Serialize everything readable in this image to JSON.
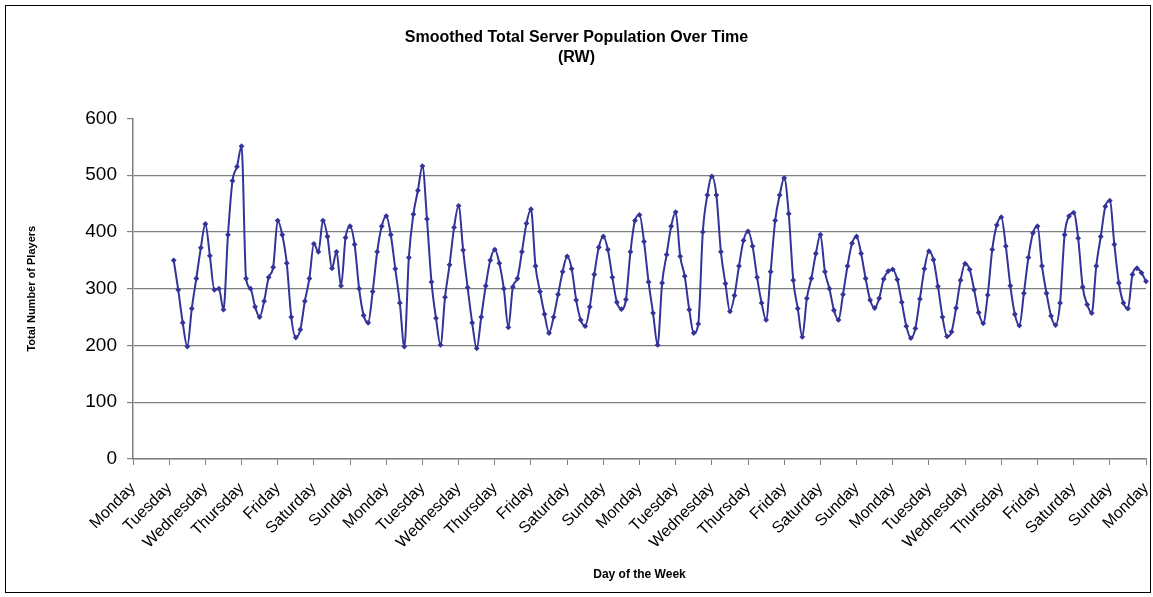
{
  "chart_data": {
    "type": "line",
    "title": "Smoothed Total Server Population Over Time",
    "subtitle": "(RW)",
    "xlabel": "Day of the Week",
    "ylabel": "Total Number of Players",
    "categories": [
      "Monday",
      null,
      null,
      null,
      null,
      null,
      null,
      null,
      "Tuesday",
      null,
      null,
      null,
      null,
      null,
      null,
      null,
      "Wednesday",
      null,
      null,
      null,
      null,
      null,
      null,
      null,
      "Thursday",
      null,
      null,
      null,
      null,
      null,
      null,
      null,
      "Friday",
      null,
      null,
      null,
      null,
      null,
      null,
      null,
      "Saturday",
      null,
      null,
      null,
      null,
      null,
      null,
      null,
      "Sunday",
      null,
      null,
      null,
      null,
      null,
      null,
      null,
      "Monday",
      null,
      null,
      null,
      null,
      null,
      null,
      null,
      "Tuesday",
      null,
      null,
      null,
      null,
      null,
      null,
      null,
      "Wednesday",
      null,
      null,
      null,
      null,
      null,
      null,
      null,
      "Thursday",
      null,
      null,
      null,
      null,
      null,
      null,
      null,
      "Friday",
      null,
      null,
      null,
      null,
      null,
      null,
      null,
      "Saturday",
      null,
      null,
      null,
      null,
      null,
      null,
      null,
      "Sunday",
      null,
      null,
      null,
      null,
      null,
      null,
      null,
      "Monday",
      null,
      null,
      null,
      null,
      null,
      null,
      null,
      "Tuesday",
      null,
      null,
      null,
      null,
      null,
      null,
      null,
      "Wednesday",
      null,
      null,
      null,
      null,
      null,
      null,
      null,
      "Thursday",
      null,
      null,
      null,
      null,
      null,
      null,
      null,
      "Friday",
      null,
      null,
      null,
      null,
      null,
      null,
      null,
      "Saturday",
      null,
      null,
      null,
      null,
      null,
      null,
      null,
      "Sunday",
      null,
      null,
      null,
      null,
      null,
      null,
      null,
      "Monday",
      null,
      null,
      null,
      null,
      null,
      null,
      null,
      "Tuesday",
      null,
      null,
      null,
      null,
      null,
      null,
      null,
      "Wednesday",
      null,
      null,
      null,
      null,
      null,
      null,
      null,
      "Thursday",
      null,
      null,
      null,
      null,
      null,
      null,
      null,
      "Friday",
      null,
      null,
      null,
      null,
      null,
      null,
      null,
      "Saturday",
      null,
      null,
      null,
      null,
      null,
      null,
      null,
      "Sunday",
      null,
      null,
      null,
      null,
      null,
      null,
      null,
      "Monday"
    ],
    "ylim": [
      0,
      600
    ],
    "yticks": [
      0,
      100,
      200,
      300,
      400,
      500,
      600
    ],
    "grid": "y",
    "marker": "diamond",
    "color": "#333399",
    "values": [
      null,
      null,
      null,
      null,
      null,
      null,
      null,
      null,
      null,
      350,
      298,
      240,
      198,
      265,
      318,
      372,
      414,
      358,
      298,
      300,
      263,
      395,
      490,
      515,
      551,
      318,
      300,
      268,
      250,
      278,
      320,
      338,
      420,
      395,
      345,
      250,
      214,
      228,
      278,
      318,
      379,
      365,
      420,
      392,
      336,
      365,
      305,
      390,
      410,
      378,
      300,
      253,
      240,
      295,
      365,
      410,
      428,
      395,
      335,
      275,
      198,
      355,
      431,
      473,
      516,
      423,
      312,
      248,
      201,
      285,
      342,
      408,
      446,
      368,
      302,
      240,
      195,
      250,
      305,
      350,
      369,
      345,
      300,
      232,
      303,
      318,
      365,
      415,
      440,
      340,
      295,
      255,
      222,
      250,
      290,
      330,
      357,
      335,
      280,
      245,
      234,
      268,
      325,
      373,
      392,
      369,
      320,
      276,
      264,
      281,
      365,
      420,
      430,
      383,
      312,
      257,
      201,
      310,
      360,
      410,
      435,
      357,
      322,
      263,
      222,
      238,
      400,
      465,
      498,
      465,
      365,
      309,
      260,
      288,
      340,
      385,
      401,
      375,
      320,
      275,
      245,
      330,
      420,
      465,
      495,
      432,
      315,
      265,
      215,
      283,
      318,
      362,
      395,
      330,
      300,
      262,
      245,
      290,
      340,
      380,
      392,
      362,
      318,
      280,
      266,
      283,
      317,
      331,
      334,
      316,
      276,
      234,
      213,
      230,
      282,
      335,
      366,
      351,
      304,
      250,
      216,
      224,
      266,
      315,
      344,
      334,
      298,
      258,
      239,
      289,
      369,
      412,
      426,
      375,
      305,
      255,
      235,
      292,
      355,
      398,
      410,
      340,
      292,
      252,
      236,
      275,
      395,
      428,
      434,
      389,
      303,
      272,
      257,
      340,
      392,
      445,
      455,
      378,
      310,
      275,
      265,
      325,
      336,
      328,
      313
    ]
  }
}
